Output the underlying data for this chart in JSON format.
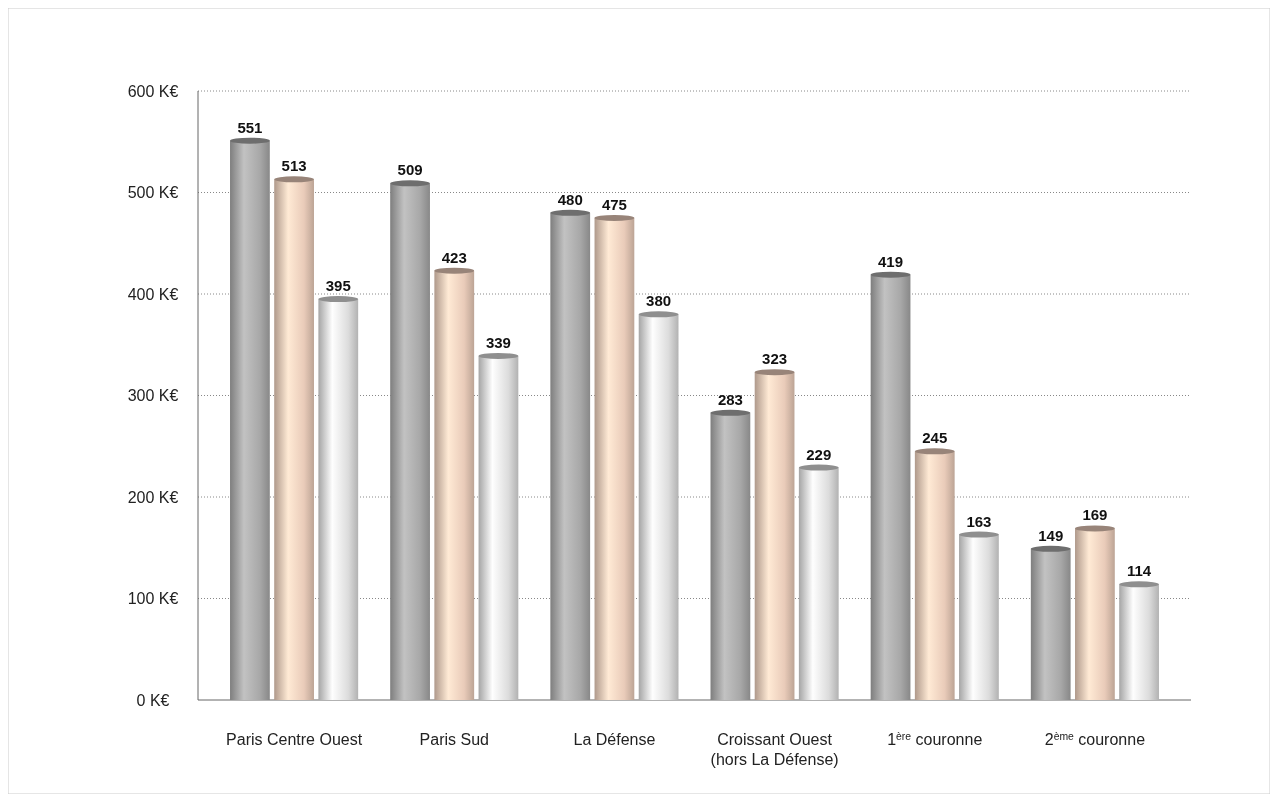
{
  "chart_data": {
    "type": "bar",
    "categories": [
      "Paris Centre Ouest",
      "Paris Sud",
      "La Défense",
      "Croissant Ouest\n(hors La Défense)",
      "1$^{ère}$ couronne",
      "2$^{ème}$ couronne"
    ],
    "series": [
      {
        "color": "#a8a8a8",
        "values": [
          551,
          509,
          480,
          283,
          419,
          149
        ]
      },
      {
        "color": "#e9cbb9",
        "values": [
          513,
          423,
          475,
          323,
          245,
          169
        ]
      },
      {
        "color": "#dcdcdc",
        "values": [
          395,
          339,
          380,
          229,
          163,
          114
        ]
      }
    ],
    "ylim": [
      0,
      600
    ],
    "yticks": [
      {
        "value": 0,
        "label": "0 K€"
      },
      {
        "value": 100,
        "label": "100 K€"
      },
      {
        "value": 200,
        "label": "200 K€"
      },
      {
        "value": 300,
        "label": "300 K€"
      },
      {
        "value": 400,
        "label": "400 K€"
      },
      {
        "value": 500,
        "label": "500 K€"
      },
      {
        "value": 600,
        "label": "600 K€"
      }
    ],
    "grid": "y",
    "data_labels": true
  }
}
